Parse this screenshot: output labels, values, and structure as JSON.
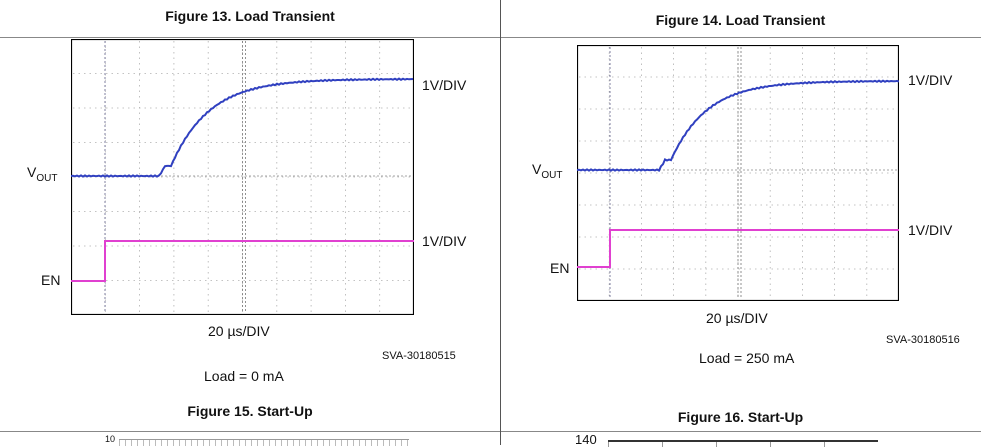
{
  "figures": [
    {
      "title": "Figure 13. Load Transient",
      "timebase": "20 µs/DIV",
      "ch1_scale": "1V/DIV",
      "ch2_scale": "1V/DIV",
      "vout_label_main": "V",
      "vout_label_sub": "OUT",
      "en_label": "EN",
      "code": "SVA-30180515",
      "condition": "Load = 0 mA"
    },
    {
      "title": "Figure 14. Load Transient",
      "timebase": "20 µs/DIV",
      "ch1_scale": "1V/DIV",
      "ch2_scale": "1V/DIV",
      "vout_label_main": "V",
      "vout_label_sub": "OUT",
      "en_label": "EN",
      "code": "SVA-30180516",
      "condition": "Load = 250 mA"
    }
  ],
  "next_figures": [
    {
      "title": "Figure 15. Start-Up",
      "axis_top_label": "10"
    },
    {
      "title": "Figure 16. Start-Up",
      "axis_top_label": "140"
    }
  ],
  "colors": {
    "vout_trace": "#3040c0",
    "en_trace": "#e040d0",
    "grid": "#b0b0b0",
    "cursor": "#8080a0"
  }
}
